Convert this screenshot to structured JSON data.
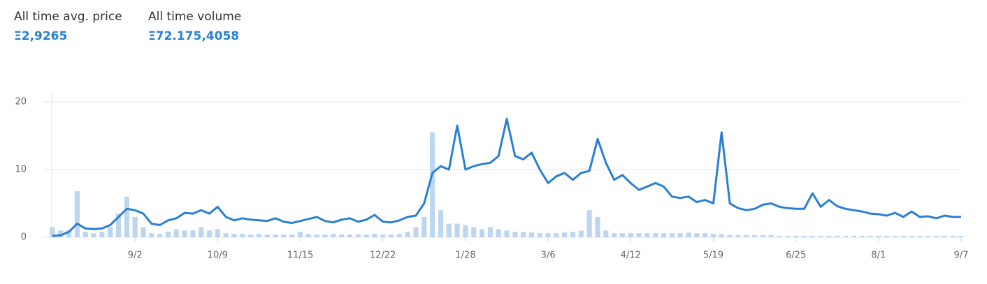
{
  "stats": [
    {
      "label": "All time avg. price",
      "value": "Ξ2,9265"
    },
    {
      "label": "All time volume",
      "value": "Ξ72.175,4058"
    }
  ],
  "chart_data": {
    "type": "combo",
    "categories": [
      null,
      null,
      null,
      null,
      null,
      null,
      null,
      null,
      null,
      null,
      "9/2",
      null,
      null,
      null,
      null,
      null,
      null,
      null,
      null,
      null,
      "10/9",
      null,
      null,
      null,
      null,
      null,
      null,
      null,
      null,
      null,
      "11/15",
      null,
      null,
      null,
      null,
      null,
      null,
      null,
      null,
      null,
      "12/22",
      null,
      null,
      null,
      null,
      null,
      null,
      null,
      null,
      null,
      "1/28",
      null,
      null,
      null,
      null,
      null,
      null,
      null,
      null,
      null,
      "3/6",
      null,
      null,
      null,
      null,
      null,
      null,
      null,
      null,
      null,
      "4/12",
      null,
      null,
      null,
      null,
      null,
      null,
      null,
      null,
      null,
      "5/19",
      null,
      null,
      null,
      null,
      null,
      null,
      null,
      null,
      null,
      "6/25",
      null,
      null,
      null,
      null,
      null,
      null,
      null,
      null,
      null,
      "8/1",
      null,
      null,
      null,
      null,
      null,
      null,
      null,
      null,
      null,
      "9/7"
    ],
    "series": [
      {
        "type": "bar",
        "color": "#bcd6f1",
        "values": [
          1.5,
          1.0,
          1.0,
          6.8,
          0.8,
          0.6,
          0.8,
          1.5,
          3.5,
          6.0,
          3.0,
          1.5,
          0.6,
          0.5,
          0.8,
          1.2,
          1.0,
          1.0,
          1.5,
          1.0,
          1.2,
          0.6,
          0.5,
          0.5,
          0.4,
          0.5,
          0.4,
          0.4,
          0.4,
          0.4,
          0.8,
          0.5,
          0.4,
          0.4,
          0.5,
          0.4,
          0.4,
          0.4,
          0.4,
          0.5,
          0.4,
          0.4,
          0.5,
          0.8,
          1.5,
          3.0,
          15.5,
          4.0,
          2.0,
          2.0,
          1.8,
          1.5,
          1.2,
          1.5,
          1.2,
          1.0,
          0.8,
          0.8,
          0.7,
          0.6,
          0.6,
          0.6,
          0.7,
          0.8,
          1.0,
          4.0,
          3.0,
          1.0,
          0.6,
          0.6,
          0.6,
          0.6,
          0.6,
          0.6,
          0.6,
          0.6,
          0.6,
          0.7,
          0.6,
          0.6,
          0.5,
          0.5,
          0.3,
          0.3,
          0.3,
          0.3,
          0.3,
          0.3,
          0.2,
          0.2,
          0.2,
          0.2,
          0.2,
          0.2,
          0.2,
          0.2,
          0.2,
          0.2,
          0.2,
          0.2,
          0.2,
          0.2,
          0.2,
          0.2,
          0.2,
          0.2,
          0.2,
          0.2,
          0.2,
          0.2,
          0.2
        ]
      },
      {
        "type": "line",
        "color": "#2a7fd4",
        "values": [
          0.2,
          0.3,
          0.8,
          2.0,
          1.3,
          1.2,
          1.3,
          1.8,
          3.0,
          4.2,
          4.0,
          3.5,
          2.0,
          1.8,
          2.5,
          2.8,
          3.6,
          3.5,
          4.0,
          3.5,
          4.5,
          3.0,
          2.5,
          2.8,
          2.6,
          2.5,
          2.4,
          2.8,
          2.3,
          2.1,
          2.4,
          2.7,
          3.0,
          2.4,
          2.2,
          2.6,
          2.8,
          2.3,
          2.6,
          3.3,
          2.3,
          2.2,
          2.5,
          3.0,
          3.2,
          5.0,
          9.5,
          10.5,
          10.0,
          16.5,
          10.0,
          10.5,
          10.8,
          11.0,
          12.0,
          17.5,
          12.0,
          11.5,
          12.5,
          10.0,
          8.0,
          9.0,
          9.5,
          8.5,
          9.5,
          9.8,
          14.5,
          11.0,
          8.5,
          9.2,
          8.0,
          7.0,
          7.5,
          8.0,
          7.5,
          6.0,
          5.8,
          6.0,
          5.2,
          5.5,
          5.0,
          15.5,
          5.0,
          4.3,
          4.0,
          4.2,
          4.8,
          5.0,
          4.5,
          4.3,
          4.2,
          4.2,
          6.5,
          4.5,
          5.5,
          4.6,
          4.2,
          4.0,
          3.8,
          3.5,
          3.4,
          3.2,
          3.6,
          3.0,
          3.8,
          3.0,
          3.1,
          2.8,
          3.2,
          3.0,
          3.0
        ]
      }
    ],
    "ylim": [
      0,
      20
    ],
    "yticks": [
      0,
      10,
      20
    ],
    "grid": true
  }
}
